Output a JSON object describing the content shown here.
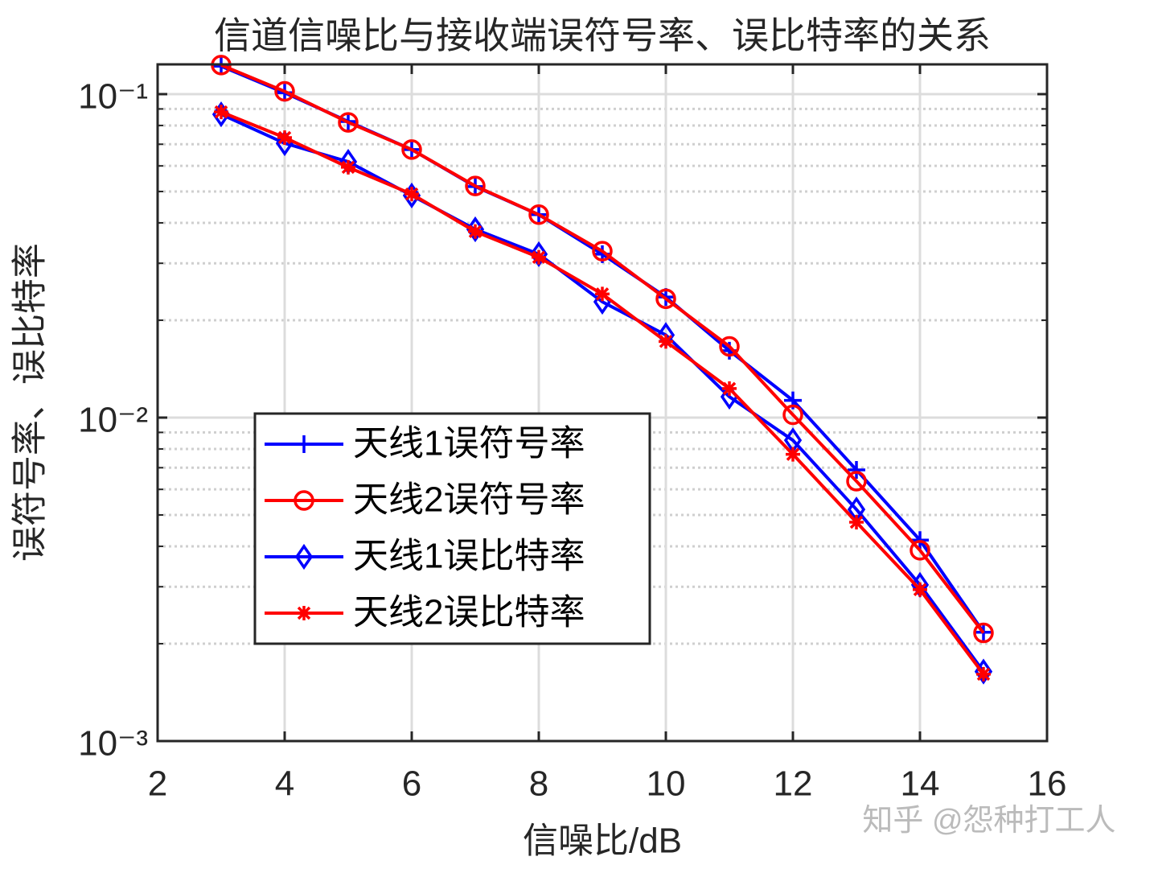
{
  "chart_data": {
    "type": "line",
    "title": "信道信噪比与接收端误符号率、误比特率的关系",
    "xlabel": "信噪比/dB",
    "ylabel": "误符号率、误比特率",
    "x": [
      3,
      4,
      5,
      6,
      7,
      8,
      9,
      10,
      11,
      12,
      13,
      14,
      15
    ],
    "series": [
      {
        "name": "天线1误符号率",
        "color": "#0000ff",
        "marker": "plus",
        "values": [
          0.122,
          0.101,
          0.0823,
          0.0674,
          0.0518,
          0.0424,
          0.032,
          0.0236,
          0.0161,
          0.0113,
          0.00689,
          0.00418,
          0.00217
        ]
      },
      {
        "name": "天线2误符号率",
        "color": "#ff0000",
        "marker": "circle",
        "values": [
          0.123,
          0.102,
          0.0818,
          0.0674,
          0.052,
          0.0424,
          0.0327,
          0.0233,
          0.0166,
          0.0102,
          0.00636,
          0.00389,
          0.00216
        ]
      },
      {
        "name": "天线1误比特率",
        "color": "#0000ff",
        "marker": "diamond",
        "values": [
          0.0866,
          0.0705,
          0.0618,
          0.0486,
          0.0382,
          0.032,
          0.0228,
          0.018,
          0.0116,
          0.00851,
          0.0052,
          0.00304,
          0.00164
        ]
      },
      {
        "name": "天线2误比特率",
        "color": "#ff0000",
        "marker": "asterisk",
        "values": [
          0.0881,
          0.0734,
          0.0594,
          0.0491,
          0.0376,
          0.0313,
          0.0241,
          0.0172,
          0.0123,
          0.0077,
          0.00475,
          0.00294,
          0.00161
        ]
      }
    ],
    "xlim": [
      2,
      16
    ],
    "xticks": [
      2,
      4,
      6,
      8,
      10,
      12,
      14,
      16
    ],
    "ylim": [
      0.001,
      0.1236
    ],
    "ylog": true,
    "yticks": [
      {
        "value": 0.001,
        "label": "10⁻³"
      },
      {
        "value": 0.01,
        "label": "10⁻²"
      },
      {
        "value": 0.1,
        "label": "10⁻¹"
      }
    ],
    "yminorticks": [
      0.002,
      0.003,
      0.004,
      0.005,
      0.006,
      0.007,
      0.008,
      0.009,
      0.02,
      0.03,
      0.04,
      0.05,
      0.06,
      0.07,
      0.08,
      0.09
    ],
    "grid": true,
    "legend": "lower left",
    "watermark": "知乎 @怨种打工人"
  }
}
